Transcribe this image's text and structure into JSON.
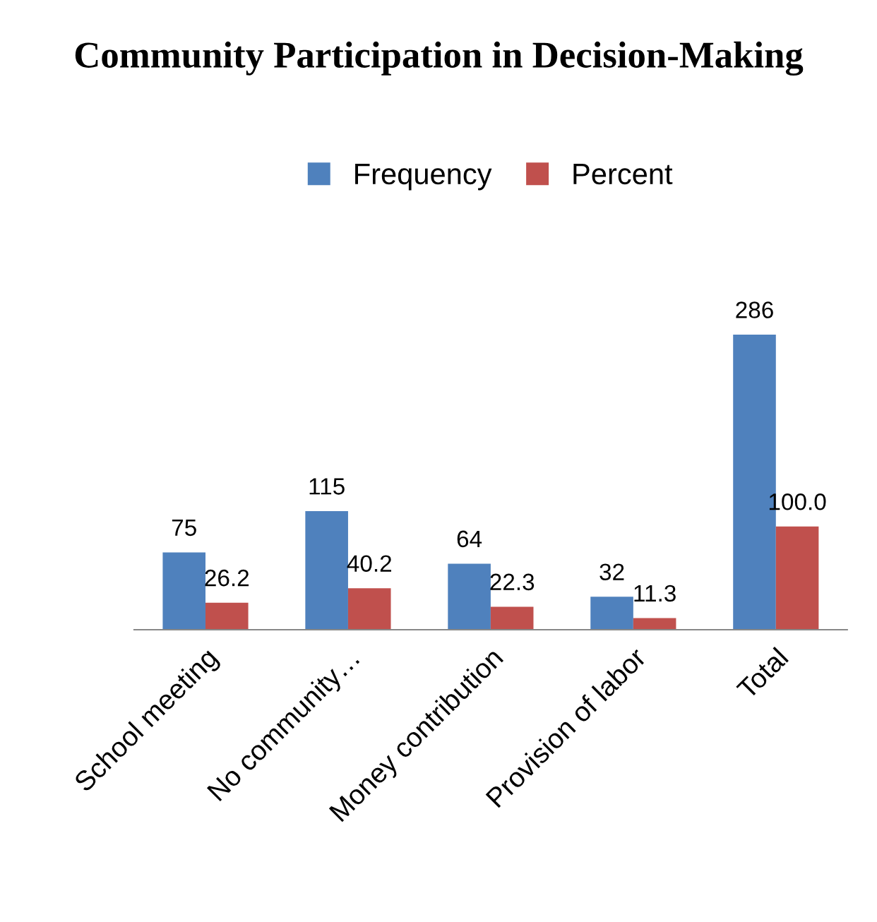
{
  "chart_data": {
    "type": "bar",
    "title": "Community Participation in Decision-Making",
    "categories": [
      "School meeting",
      "No community…",
      "Money contribution",
      "Provision of labor",
      "Total"
    ],
    "series": [
      {
        "name": "Frequency",
        "color": "#4f81bd",
        "values": [
          75,
          115,
          64,
          32,
          286
        ],
        "value_labels": [
          "75",
          "115",
          "64",
          "32",
          "286"
        ]
      },
      {
        "name": "Percent",
        "color": "#c0504d",
        "values": [
          26.2,
          40.2,
          22.3,
          11.3,
          100.0
        ],
        "value_labels": [
          "26.2",
          "40.2",
          "22.3",
          "11.3",
          "100.0"
        ]
      }
    ],
    "legend": "top",
    "grid": false
  }
}
